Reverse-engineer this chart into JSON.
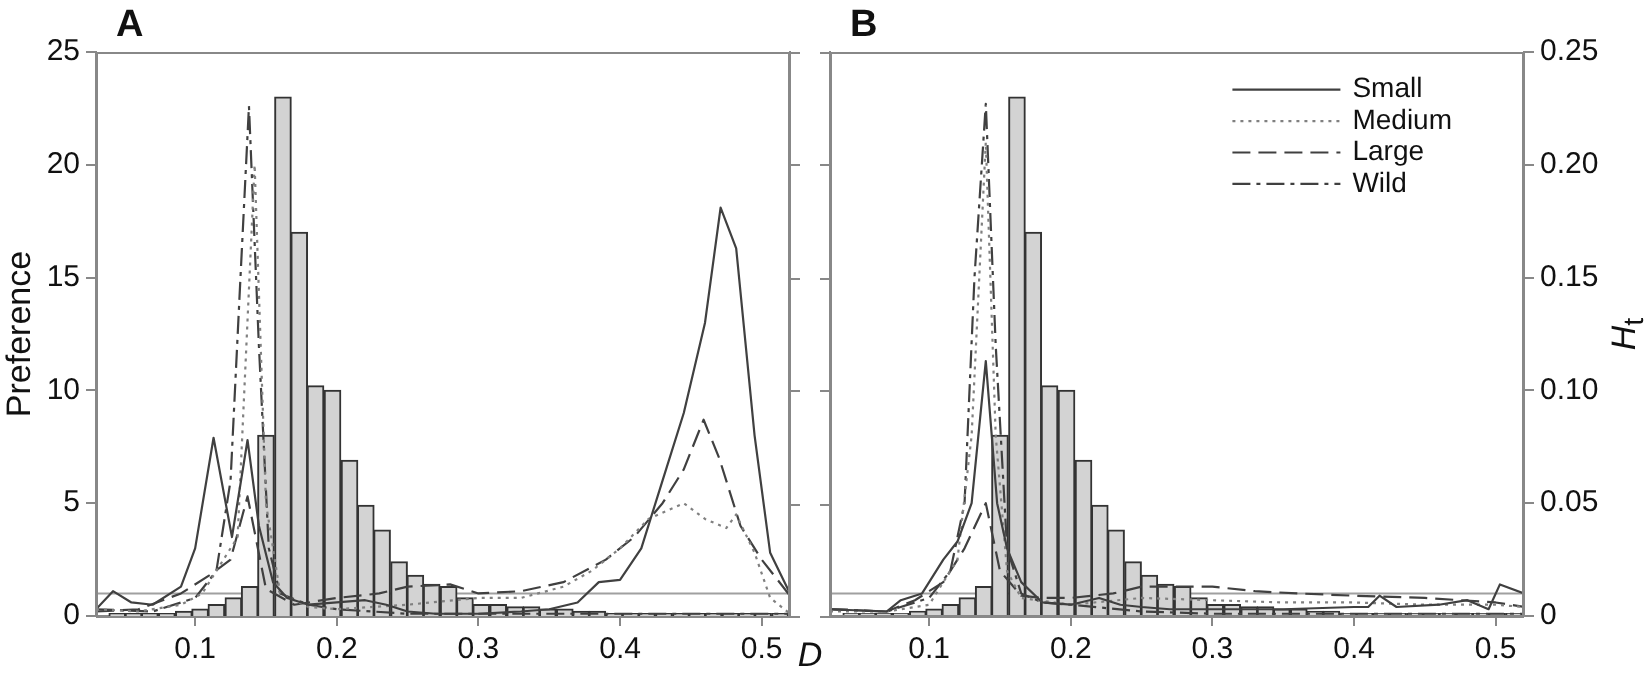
{
  "chart_data": [
    {
      "type": "line",
      "title": "A",
      "xlabel": "D",
      "ylabel": "Preference",
      "xlim": [
        0.03,
        0.52
      ],
      "xticks": [
        0.1,
        0.2,
        0.3,
        0.4,
        0.5
      ],
      "ylim": [
        0,
        25
      ],
      "yticks": [
        0,
        5,
        10,
        15,
        20,
        25
      ],
      "y2lim": [
        0,
        0.25
      ],
      "legend": false,
      "ref_lines": [
        {
          "axis": "y",
          "value": 1,
          "color": "#a0a0a0"
        }
      ],
      "series": [
        {
          "type": "histogram",
          "axis": "y2",
          "color": "#d3d3d3",
          "bins": [
            0.039,
            0.051,
            0.062,
            0.074,
            0.086,
            0.098,
            0.109,
            0.121,
            0.133,
            0.144,
            0.156,
            0.168,
            0.179,
            0.191,
            0.203,
            0.215,
            0.226,
            0.238,
            0.25,
            0.261,
            0.273,
            0.285,
            0.296,
            0.308,
            0.32,
            0.332,
            0.343,
            0.355,
            0.367,
            0.378,
            0.39,
            0.402,
            0.413,
            0.425,
            0.437,
            0.449,
            0.46,
            0.472,
            0.484,
            0.495,
            0.507,
            0.519
          ],
          "values": [
            0.001,
            0.001,
            0.001,
            0.001,
            0.002,
            0.003,
            0.005,
            0.008,
            0.013,
            0.08,
            0.23,
            0.17,
            0.102,
            0.1,
            0.069,
            0.049,
            0.038,
            0.024,
            0.018,
            0.014,
            0.013,
            0.008,
            0.005,
            0.005,
            0.004,
            0.004,
            0.003,
            0.003,
            0.002,
            0.002,
            0.001,
            0.001,
            0.001,
            0.001,
            0.001,
            0.001,
            0.001,
            0.001,
            0.001,
            0.001,
            0.001
          ]
        },
        {
          "type": "line",
          "line_style": "solid",
          "color": "#404040",
          "x": [
            0.03,
            0.042,
            0.055,
            0.07,
            0.09,
            0.1,
            0.113,
            0.126,
            0.137,
            0.145,
            0.155,
            0.165,
            0.18,
            0.2,
            0.22,
            0.235,
            0.25,
            0.27,
            0.3,
            0.33,
            0.35,
            0.37,
            0.385,
            0.4,
            0.415,
            0.43,
            0.445,
            0.46,
            0.471,
            0.482,
            0.495,
            0.506,
            0.52
          ],
          "values": [
            0.3,
            1.1,
            0.6,
            0.5,
            1.3,
            3,
            7.9,
            3.5,
            7.8,
            4,
            1.5,
            0.8,
            0.5,
            0.6,
            0.7,
            0.5,
            0.2,
            0.1,
            0.1,
            0.2,
            0.3,
            0.6,
            1.5,
            1.6,
            3,
            6,
            9,
            13,
            18.1,
            16.3,
            8,
            2.8,
            1
          ]
        },
        {
          "type": "line",
          "line_style": "dotted",
          "color": "#808080",
          "x": [
            0.03,
            0.06,
            0.09,
            0.105,
            0.12,
            0.13,
            0.142,
            0.15,
            0.16,
            0.18,
            0.2,
            0.25,
            0.3,
            0.33,
            0.36,
            0.38,
            0.4,
            0.42,
            0.445,
            0.46,
            0.475,
            0.482,
            0.495,
            0.506,
            0.52
          ],
          "values": [
            0.3,
            0.2,
            0.5,
            1,
            2.5,
            3.5,
            20,
            5,
            1,
            0.4,
            0.3,
            0.5,
            0.8,
            0.8,
            1.3,
            2,
            3,
            4.3,
            5,
            4.3,
            3.9,
            4.5,
            2.8,
            0.8,
            0.1
          ]
        },
        {
          "type": "line",
          "line_style": "dashed",
          "color": "#404040",
          "x": [
            0.03,
            0.06,
            0.09,
            0.11,
            0.125,
            0.137,
            0.15,
            0.17,
            0.2,
            0.23,
            0.25,
            0.28,
            0.3,
            0.33,
            0.36,
            0.39,
            0.41,
            0.43,
            0.445,
            0.459,
            0.47,
            0.485,
            0.5,
            0.52
          ],
          "values": [
            0.2,
            0.3,
            1,
            1.8,
            2.5,
            5.3,
            1.2,
            0.5,
            0.8,
            1,
            1.3,
            1.4,
            1,
            1.1,
            1.5,
            2.5,
            3.5,
            5,
            6.5,
            8.7,
            7,
            4,
            2.5,
            0.9
          ]
        },
        {
          "type": "line",
          "line_style": "dashdot",
          "color": "#404040",
          "x": [
            0.03,
            0.07,
            0.1,
            0.115,
            0.125,
            0.132,
            0.138,
            0.145,
            0.152,
            0.16,
            0.18,
            0.2,
            0.25,
            0.3,
            0.4,
            0.45,
            0.5,
            0.52
          ],
          "values": [
            0.3,
            0.2,
            0.8,
            2,
            6,
            15,
            22.6,
            12,
            3,
            1,
            0.5,
            0.3,
            0.1,
            0.1,
            0.1,
            0.1,
            0.1,
            0.1
          ]
        }
      ]
    },
    {
      "type": "line",
      "title": "B",
      "y2label": "H$_{t}$",
      "xlim": [
        0.03,
        0.52
      ],
      "xticks": [
        0.1,
        0.2,
        0.3,
        0.4,
        0.5
      ],
      "ylim": [
        0,
        25
      ],
      "y2lim": [
        0,
        0.25
      ],
      "y2ticks": [
        0,
        0.05,
        {
          "value": 0.1,
          "label": "0.10"
        },
        0.15,
        {
          "value": 0.2,
          "label": "0.20"
        },
        0.25
      ],
      "legend": "top right",
      "ref_lines": [
        {
          "axis": "y",
          "value": 1,
          "color": "#a0a0a0"
        }
      ],
      "series": [
        {
          "type": "histogram",
          "axis": "y2",
          "color": "#d3d3d3",
          "bins": [
            0.039,
            0.051,
            0.062,
            0.074,
            0.086,
            0.098,
            0.109,
            0.121,
            0.133,
            0.144,
            0.156,
            0.168,
            0.179,
            0.191,
            0.203,
            0.215,
            0.226,
            0.238,
            0.25,
            0.261,
            0.273,
            0.285,
            0.296,
            0.308,
            0.32,
            0.332,
            0.343,
            0.355,
            0.367,
            0.378,
            0.39,
            0.402,
            0.413,
            0.425,
            0.437,
            0.449,
            0.46,
            0.472,
            0.484,
            0.495,
            0.507,
            0.519
          ],
          "values": [
            0.001,
            0.001,
            0.001,
            0.001,
            0.002,
            0.003,
            0.005,
            0.008,
            0.013,
            0.08,
            0.23,
            0.17,
            0.102,
            0.1,
            0.069,
            0.049,
            0.038,
            0.024,
            0.018,
            0.014,
            0.013,
            0.008,
            0.005,
            0.005,
            0.004,
            0.004,
            0.003,
            0.003,
            0.002,
            0.002,
            0.001,
            0.001,
            0.001,
            0.001,
            0.001,
            0.001,
            0.001,
            0.001,
            0.001,
            0.001,
            0.001
          ]
        },
        {
          "type": "line",
          "name": "Small",
          "line_style": "solid",
          "color": "#404040",
          "x": [
            0.03,
            0.07,
            0.08,
            0.095,
            0.11,
            0.12,
            0.13,
            0.14,
            0.148,
            0.155,
            0.165,
            0.18,
            0.2,
            0.22,
            0.235,
            0.25,
            0.27,
            0.3,
            0.35,
            0.4,
            0.41,
            0.418,
            0.43,
            0.46,
            0.48,
            0.495,
            0.503,
            0.52
          ],
          "values": [
            0.3,
            0.2,
            0.7,
            1,
            2.5,
            3.3,
            5,
            11.3,
            5,
            3,
            1.5,
            0.6,
            0.5,
            0.8,
            0.5,
            0.4,
            0.3,
            0.3,
            0.3,
            0.4,
            0.4,
            0.9,
            0.4,
            0.5,
            0.7,
            0.3,
            1.4,
            1
          ]
        },
        {
          "type": "line",
          "name": "Medium",
          "line_style": "dotted",
          "color": "#808080",
          "x": [
            0.03,
            0.07,
            0.1,
            0.12,
            0.13,
            0.14,
            0.147,
            0.155,
            0.165,
            0.2,
            0.25,
            0.3,
            0.35,
            0.4,
            0.45,
            0.5,
            0.52
          ],
          "values": [
            0.2,
            0.2,
            0.5,
            2.5,
            8,
            21,
            8,
            2,
            0.8,
            0.5,
            0.8,
            0.7,
            0.6,
            0.6,
            0.5,
            0.5,
            0.4
          ]
        },
        {
          "type": "line",
          "name": "Large",
          "line_style": "dashed",
          "color": "#404040",
          "x": [
            0.03,
            0.07,
            0.09,
            0.11,
            0.125,
            0.14,
            0.15,
            0.165,
            0.18,
            0.2,
            0.23,
            0.25,
            0.28,
            0.3,
            0.33,
            0.36,
            0.4,
            0.45,
            0.5,
            0.52
          ],
          "values": [
            0.3,
            0.2,
            0.7,
            1.5,
            3,
            5,
            2,
            0.9,
            0.8,
            0.8,
            1,
            1.3,
            1.3,
            1.3,
            1.1,
            1,
            0.9,
            0.8,
            0.6,
            0.4
          ]
        },
        {
          "type": "line",
          "name": "Wild",
          "line_style": "dashdot",
          "color": "#404040",
          "x": [
            0.03,
            0.07,
            0.1,
            0.115,
            0.125,
            0.132,
            0.14,
            0.147,
            0.155,
            0.165,
            0.18,
            0.2,
            0.25,
            0.3,
            0.4,
            0.5,
            0.52
          ],
          "values": [
            0.3,
            0.2,
            0.8,
            2,
            5,
            15,
            22.7,
            12,
            3,
            1,
            0.6,
            0.5,
            0.2,
            0.1,
            0.1,
            0.1,
            0.1
          ]
        }
      ]
    }
  ]
}
